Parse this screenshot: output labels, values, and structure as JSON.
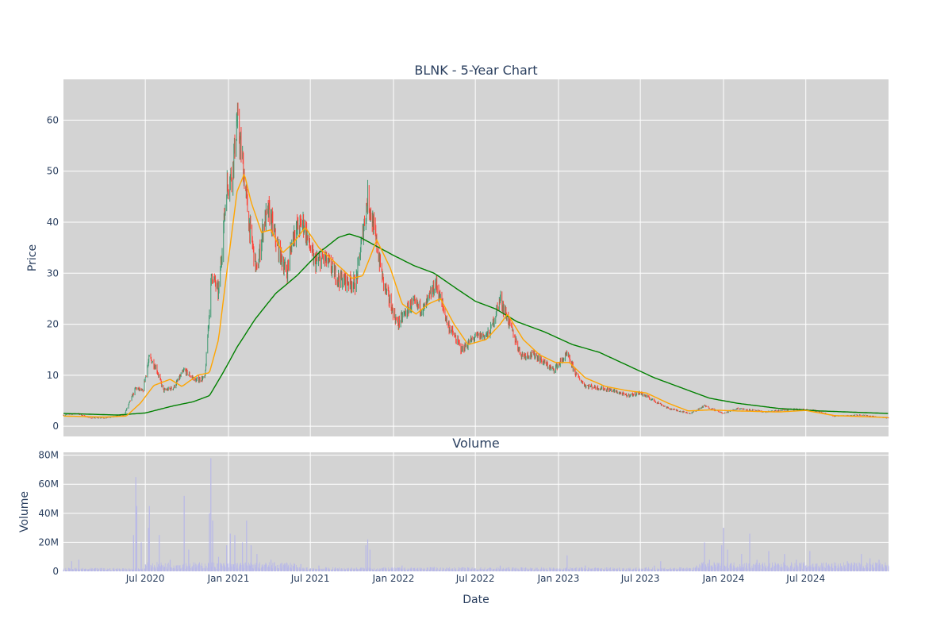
{
  "chart_data": [
    {
      "type": "candlestick",
      "title": "BLNK - 5-Year Chart",
      "xlabel": "",
      "ylabel": "Price",
      "ylim": [
        -2,
        68
      ],
      "yticks": [
        0,
        10,
        20,
        30,
        40,
        50,
        60
      ],
      "grid": true,
      "colors": {
        "plot_bg": "#d3d3d3",
        "grid": "#ffffff",
        "up": "#3d9970",
        "down": "#ff4136",
        "ma_short": "#ffa500",
        "ma_long": "#008000"
      },
      "price_path": [
        [
          "2020-01-02",
          2.2
        ],
        [
          "2020-02-01",
          2.5
        ],
        [
          "2020-03-01",
          1.6
        ],
        [
          "2020-04-01",
          1.6
        ],
        [
          "2020-05-15",
          2.2
        ],
        [
          "2020-06-10",
          7.5
        ],
        [
          "2020-06-25",
          6.8
        ],
        [
          "2020-07-10",
          13.5
        ],
        [
          "2020-07-25",
          11.5
        ],
        [
          "2020-08-10",
          7.0
        ],
        [
          "2020-09-01",
          7.5
        ],
        [
          "2020-09-25",
          11.0
        ],
        [
          "2020-10-20",
          9.0
        ],
        [
          "2020-11-10",
          9.5
        ],
        [
          "2020-11-25",
          30.0
        ],
        [
          "2020-12-10",
          26.0
        ],
        [
          "2020-12-28",
          47.0
        ],
        [
          "2021-01-10",
          50.0
        ],
        [
          "2021-01-20",
          60.0
        ],
        [
          "2021-02-01",
          52.0
        ],
        [
          "2021-02-15",
          40.0
        ],
        [
          "2021-03-05",
          30.0
        ],
        [
          "2021-03-20",
          40.0
        ],
        [
          "2021-04-01",
          42.0
        ],
        [
          "2021-04-20",
          35.0
        ],
        [
          "2021-05-10",
          30.0
        ],
        [
          "2021-05-25",
          38.0
        ],
        [
          "2021-06-15",
          40.0
        ],
        [
          "2021-07-10",
          32.0
        ],
        [
          "2021-08-01",
          33.0
        ],
        [
          "2021-09-01",
          29.0
        ],
        [
          "2021-10-10",
          28.0
        ],
        [
          "2021-11-05",
          45.0
        ],
        [
          "2021-11-20",
          38.0
        ],
        [
          "2021-12-10",
          28.0
        ],
        [
          "2022-01-10",
          20.0
        ],
        [
          "2022-02-10",
          24.0
        ],
        [
          "2022-03-10",
          23.0
        ],
        [
          "2022-04-05",
          28.0
        ],
        [
          "2022-05-01",
          20.0
        ],
        [
          "2022-06-01",
          15.0
        ],
        [
          "2022-07-01",
          17.5
        ],
        [
          "2022-08-01",
          18.0
        ],
        [
          "2022-08-25",
          25.0
        ],
        [
          "2022-09-15",
          20.0
        ],
        [
          "2022-10-10",
          14.0
        ],
        [
          "2022-11-10",
          14.0
        ],
        [
          "2022-12-20",
          11.0
        ],
        [
          "2023-01-20",
          14.0
        ],
        [
          "2023-02-10",
          10.0
        ],
        [
          "2023-03-01",
          8.0
        ],
        [
          "2023-04-01",
          7.5
        ],
        [
          "2023-05-01",
          7.0
        ],
        [
          "2023-06-01",
          6.0
        ],
        [
          "2023-07-01",
          6.5
        ],
        [
          "2023-08-01",
          5.0
        ],
        [
          "2023-09-01",
          3.5
        ],
        [
          "2023-10-20",
          2.5
        ],
        [
          "2023-11-20",
          4.0
        ],
        [
          "2024-01-01",
          2.5
        ],
        [
          "2024-02-01",
          3.5
        ],
        [
          "2024-04-01",
          2.8
        ],
        [
          "2024-06-01",
          3.3
        ],
        [
          "2024-07-15",
          3.2
        ],
        [
          "2024-09-01",
          2.0
        ],
        [
          "2024-11-01",
          2.2
        ],
        [
          "2024-12-31",
          1.6
        ]
      ],
      "ma_short_path": [
        [
          "2020-01-02",
          2.0
        ],
        [
          "2020-04-01",
          1.8
        ],
        [
          "2020-05-20",
          2.0
        ],
        [
          "2020-06-20",
          4.5
        ],
        [
          "2020-07-20",
          8.0
        ],
        [
          "2020-08-25",
          9.2
        ],
        [
          "2020-09-20",
          7.8
        ],
        [
          "2020-10-25",
          10.0
        ],
        [
          "2020-11-20",
          10.5
        ],
        [
          "2020-12-10",
          17.0
        ],
        [
          "2020-12-28",
          30.0
        ],
        [
          "2021-01-20",
          46.0
        ],
        [
          "2021-02-05",
          49.5
        ],
        [
          "2021-02-20",
          44.0
        ],
        [
          "2021-03-15",
          38.0
        ],
        [
          "2021-04-05",
          38.5
        ],
        [
          "2021-05-01",
          34.0
        ],
        [
          "2021-05-25",
          36.0
        ],
        [
          "2021-06-20",
          39.0
        ],
        [
          "2021-07-20",
          35.0
        ],
        [
          "2021-08-20",
          32.5
        ],
        [
          "2021-10-01",
          29.0
        ],
        [
          "2021-10-25",
          29.5
        ],
        [
          "2021-11-25",
          36.5
        ],
        [
          "2021-12-25",
          31.0
        ],
        [
          "2022-01-20",
          24.0
        ],
        [
          "2022-02-20",
          22.0
        ],
        [
          "2022-03-20",
          24.0
        ],
        [
          "2022-04-15",
          25.0
        ],
        [
          "2022-05-15",
          20.0
        ],
        [
          "2022-06-15",
          16.0
        ],
        [
          "2022-07-25",
          17.0
        ],
        [
          "2022-08-25",
          20.0
        ],
        [
          "2022-09-10",
          22.0
        ],
        [
          "2022-10-15",
          17.0
        ],
        [
          "2022-11-20",
          14.0
        ],
        [
          "2022-12-25",
          12.5
        ],
        [
          "2023-01-25",
          12.5
        ],
        [
          "2023-03-01",
          9.5
        ],
        [
          "2023-04-15",
          7.8
        ],
        [
          "2023-06-01",
          7.0
        ],
        [
          "2023-07-15",
          6.5
        ],
        [
          "2023-09-01",
          4.5
        ],
        [
          "2023-10-15",
          3.0
        ],
        [
          "2023-12-01",
          3.2
        ],
        [
          "2024-02-01",
          3.0
        ],
        [
          "2024-05-01",
          2.8
        ],
        [
          "2024-07-01",
          3.1
        ],
        [
          "2024-09-01",
          2.1
        ],
        [
          "2024-12-31",
          1.7
        ]
      ],
      "ma_long_path": [
        [
          "2020-01-02",
          2.5
        ],
        [
          "2020-05-01",
          2.2
        ],
        [
          "2020-07-01",
          2.6
        ],
        [
          "2020-09-01",
          4.0
        ],
        [
          "2020-10-15",
          4.8
        ],
        [
          "2020-11-20",
          6.0
        ],
        [
          "2020-12-20",
          10.5
        ],
        [
          "2021-01-20",
          15.5
        ],
        [
          "2021-03-01",
          21.0
        ],
        [
          "2021-04-15",
          26.0
        ],
        [
          "2021-06-01",
          29.5
        ],
        [
          "2021-07-20",
          34.0
        ],
        [
          "2021-09-01",
          37.0
        ],
        [
          "2021-09-25",
          37.7
        ],
        [
          "2021-10-20",
          37.0
        ],
        [
          "2021-11-20",
          35.5
        ],
        [
          "2022-01-01",
          33.5
        ],
        [
          "2022-02-15",
          31.5
        ],
        [
          "2022-04-01",
          30.0
        ],
        [
          "2022-05-20",
          27.0
        ],
        [
          "2022-07-01",
          24.5
        ],
        [
          "2022-08-15",
          23.0
        ],
        [
          "2022-10-01",
          20.5
        ],
        [
          "2022-12-01",
          18.5
        ],
        [
          "2023-02-01",
          16.0
        ],
        [
          "2023-04-01",
          14.5
        ],
        [
          "2023-06-01",
          12.0
        ],
        [
          "2023-08-01",
          9.5
        ],
        [
          "2023-10-01",
          7.5
        ],
        [
          "2023-12-01",
          5.5
        ],
        [
          "2024-02-01",
          4.5
        ],
        [
          "2024-05-01",
          3.5
        ],
        [
          "2024-08-01",
          3.0
        ],
        [
          "2024-12-31",
          2.5
        ]
      ]
    },
    {
      "type": "bar",
      "title": "Volume",
      "xlabel": "Date",
      "ylabel": "Volume",
      "ylim": [
        0,
        82000000
      ],
      "yticks": [
        0,
        20000000,
        40000000,
        60000000,
        80000000
      ],
      "ytick_labels": [
        "0",
        "20M",
        "40M",
        "60M",
        "80M"
      ],
      "x_range": [
        "2020-01-02",
        "2024-12-31"
      ],
      "xticks": [
        "2020-07-01",
        "2021-01-01",
        "2021-07-01",
        "2022-01-01",
        "2022-07-01",
        "2023-01-01",
        "2023-07-01",
        "2024-01-01",
        "2024-07-01"
      ],
      "xtick_labels": [
        "Jul 2020",
        "Jan 2021",
        "Jul 2021",
        "Jan 2022",
        "Jul 2022",
        "Jan 2023",
        "Jul 2023",
        "Jan 2024",
        "Jul 2024"
      ],
      "grid": true,
      "colors": {
        "bar": "#b8b8e8"
      },
      "spikes": [
        [
          "2020-01-20",
          7000000
        ],
        [
          "2020-02-05",
          8000000
        ],
        [
          "2020-06-05",
          25000000
        ],
        [
          "2020-06-10",
          65000000
        ],
        [
          "2020-06-12",
          45000000
        ],
        [
          "2020-06-22",
          20000000
        ],
        [
          "2020-07-08",
          30000000
        ],
        [
          "2020-07-10",
          45000000
        ],
        [
          "2020-08-01",
          25000000
        ],
        [
          "2020-08-25",
          8000000
        ],
        [
          "2020-09-25",
          52000000
        ],
        [
          "2020-10-05",
          15000000
        ],
        [
          "2020-11-20",
          40000000
        ],
        [
          "2020-11-23",
          78000000
        ],
        [
          "2020-11-27",
          35000000
        ],
        [
          "2020-12-10",
          10000000
        ],
        [
          "2020-12-28",
          18000000
        ],
        [
          "2021-01-05",
          26000000
        ],
        [
          "2021-01-15",
          25000000
        ],
        [
          "2021-02-01",
          20000000
        ],
        [
          "2021-02-10",
          35000000
        ],
        [
          "2021-02-20",
          18000000
        ],
        [
          "2021-03-05",
          12000000
        ],
        [
          "2021-04-05",
          8000000
        ],
        [
          "2021-05-10",
          6000000
        ],
        [
          "2021-06-10",
          5000000
        ],
        [
          "2021-07-20",
          4000000
        ],
        [
          "2021-11-01",
          18000000
        ],
        [
          "2021-11-05",
          22000000
        ],
        [
          "2021-11-10",
          15000000
        ],
        [
          "2022-01-20",
          4000000
        ],
        [
          "2022-04-01",
          3000000
        ],
        [
          "2022-08-25",
          4000000
        ],
        [
          "2023-01-20",
          11000000
        ],
        [
          "2023-03-01",
          4000000
        ],
        [
          "2023-08-01",
          4000000
        ],
        [
          "2023-08-15",
          7000000
        ],
        [
          "2023-11-20",
          20000000
        ],
        [
          "2023-12-01",
          8000000
        ],
        [
          "2023-12-28",
          18000000
        ],
        [
          "2024-01-01",
          30000000
        ],
        [
          "2024-01-10",
          15000000
        ],
        [
          "2024-02-10",
          12000000
        ],
        [
          "2024-02-28",
          26000000
        ],
        [
          "2024-03-15",
          8000000
        ],
        [
          "2024-04-10",
          14000000
        ],
        [
          "2024-05-15",
          12000000
        ],
        [
          "2024-06-10",
          8000000
        ],
        [
          "2024-07-10",
          14000000
        ],
        [
          "2024-08-15",
          6000000
        ],
        [
          "2024-10-01",
          7000000
        ],
        [
          "2024-11-01",
          12000000
        ],
        [
          "2024-11-20",
          9000000
        ],
        [
          "2024-12-10",
          8000000
        ]
      ]
    }
  ]
}
